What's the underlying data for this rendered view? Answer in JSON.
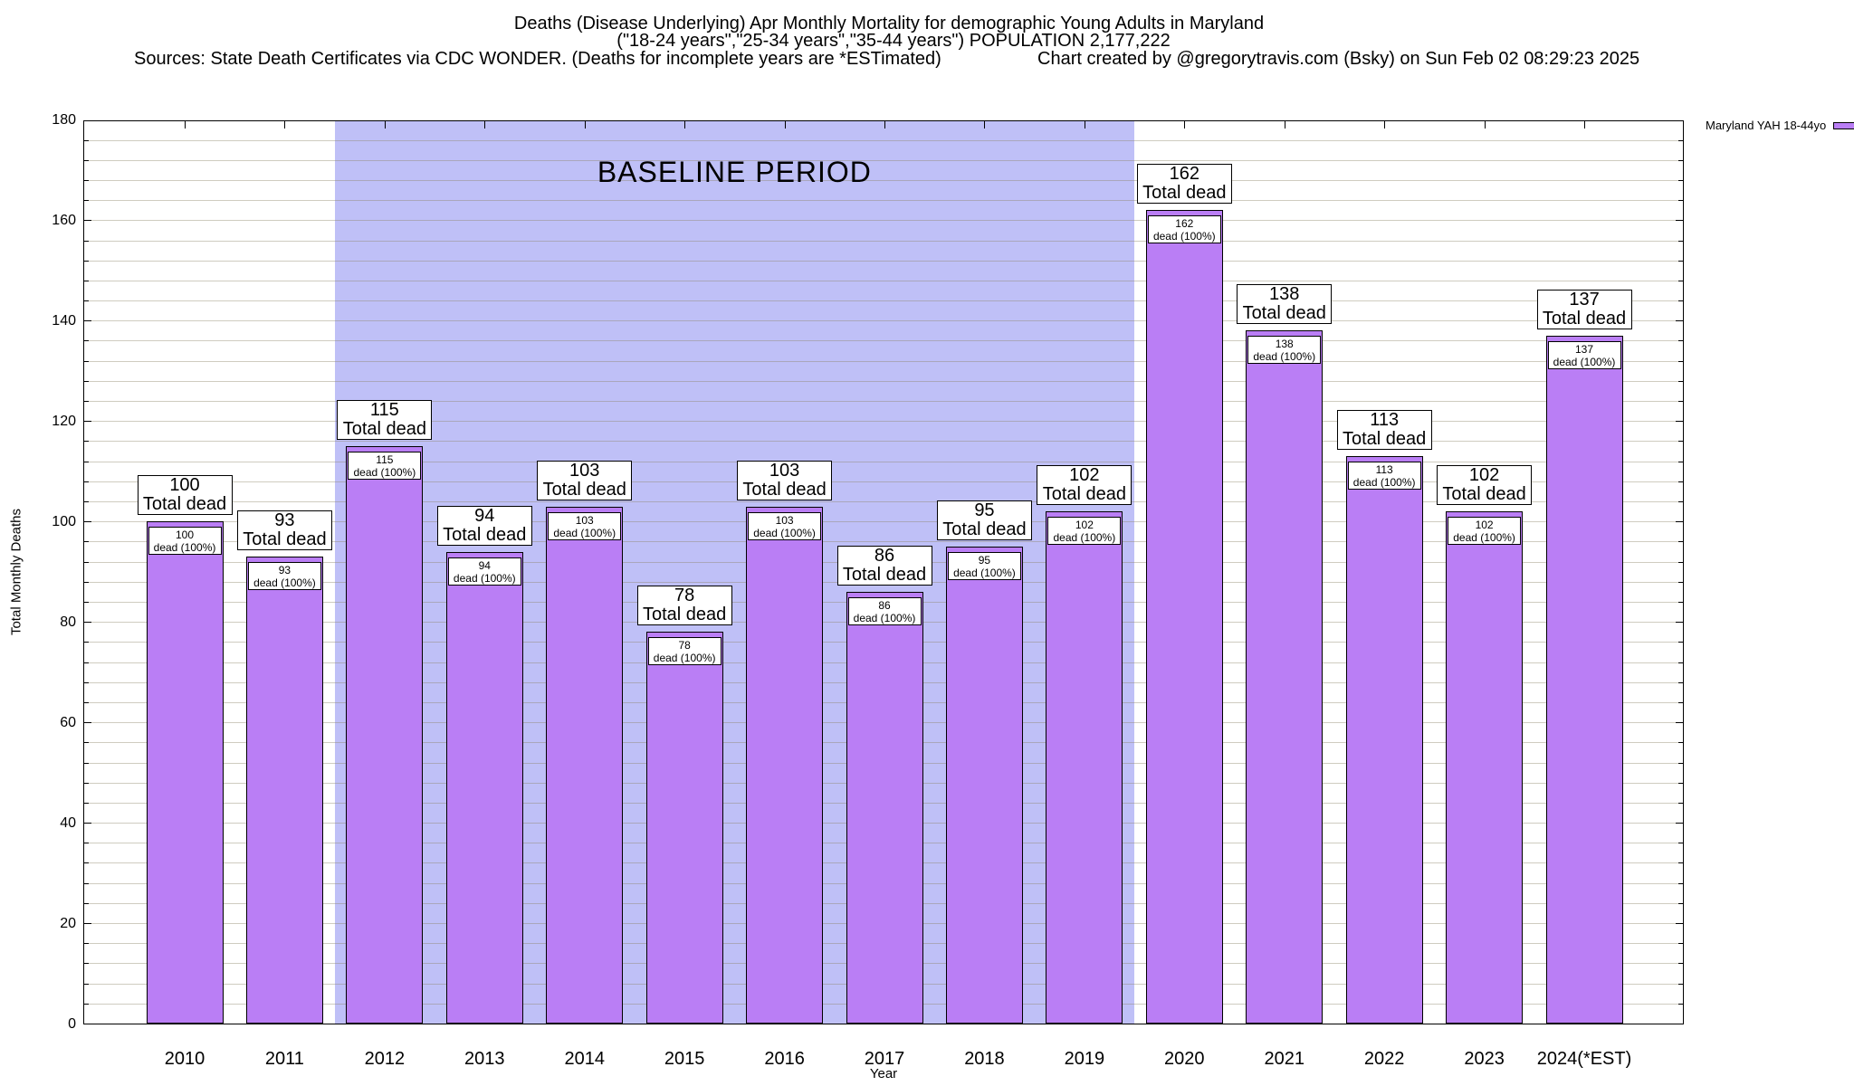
{
  "header": {
    "title_line1": "Deaths (Disease Underlying) Apr Monthly Mortality for demographic Young Adults in Maryland",
    "title_line2": "(\"18-24 years\",\"25-34 years\",\"35-44 years\") POPULATION 2,177,222",
    "sources_note": "Sources: State Death Certificates via CDC WONDER. (Deaths for incomplete years are *ESTimated)",
    "credit_note": "Chart created by @gregorytravis.com (Bsky) on Sun Feb 02 08:29:23 2025"
  },
  "legend": {
    "label": "Maryland YAH 18-44yo",
    "swatch_color": "#ba7ef5"
  },
  "axes": {
    "y_axis_title": "Total Monthly Deaths",
    "x_axis_title": "Year",
    "y_tick_step": 20,
    "y_minor_step": 4
  },
  "colors": {
    "bar_fill": "#ba7ef5",
    "baseline_band": "#bfc0f7",
    "gridline": "rgba(140,134,104,0.42)"
  },
  "chart_data": {
    "type": "bar",
    "title": "Deaths (Disease Underlying) Apr Monthly Mortality for demographic Young Adults in Maryland",
    "subtitle": "(\"18-24 years\",\"25-34 years\",\"35-44 years\") POPULATION 2,177,222",
    "categories": [
      "2010",
      "2011",
      "2012",
      "2013",
      "2014",
      "2015",
      "2016",
      "2017",
      "2018",
      "2019",
      "2020",
      "2021",
      "2022",
      "2023",
      "2024(*EST)"
    ],
    "values": [
      100,
      93,
      115,
      94,
      103,
      78,
      103,
      86,
      95,
      102,
      162,
      138,
      113,
      102,
      137
    ],
    "series_label": "Maryland YAH 18-44yo",
    "xlabel": "Year",
    "ylabel": "Total Monthly Deaths",
    "ylim": [
      0,
      180
    ],
    "grid": true,
    "legend_position": "top-right-outside",
    "bar_outer_label_suffix": "Total dead",
    "bar_inner_label_suffix": "dead (100%)",
    "baseline_period": {
      "label": "BASELINE PERIOD",
      "from_category": "2012",
      "to_category": "2019"
    }
  }
}
